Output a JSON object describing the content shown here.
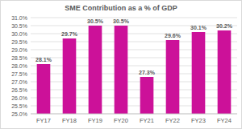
{
  "chart_data": {
    "type": "bar",
    "title": "SME Contribution as a % of GDP",
    "categories": [
      "FY17",
      "FY18",
      "FY19",
      "FY20",
      "FY21",
      "FY22",
      "FY23",
      "FY24"
    ],
    "values": [
      28.1,
      29.7,
      30.5,
      30.5,
      27.3,
      29.6,
      30.1,
      30.2
    ],
    "value_labels": [
      "28.1%",
      "29.7%",
      "30.5%",
      "30.5%",
      "27.3%",
      "29.6%",
      "30.1%",
      "30.2%"
    ],
    "color": "#cc1199",
    "ylim": [
      25,
      31
    ],
    "yticks": [
      {
        "value": 25,
        "label": "25.0%"
      },
      {
        "value": 25.5,
        "label": "25.5%"
      },
      {
        "value": 26,
        "label": "26.0%"
      },
      {
        "value": 26.5,
        "label": "26.5%"
      },
      {
        "value": 27,
        "label": "27.0%"
      },
      {
        "value": 27.5,
        "label": "27.5%"
      },
      {
        "value": 28,
        "label": "28.0%"
      },
      {
        "value": 28.5,
        "label": "28.5%"
      },
      {
        "value": 29,
        "label": "29.0%"
      },
      {
        "value": 29.5,
        "label": "29.5%"
      },
      {
        "value": 30,
        "label": "30.0%"
      },
      {
        "value": 30.5,
        "label": "30.5%"
      },
      {
        "value": 31,
        "label": "31.0%"
      }
    ],
    "grid": true,
    "data_labels": true
  }
}
